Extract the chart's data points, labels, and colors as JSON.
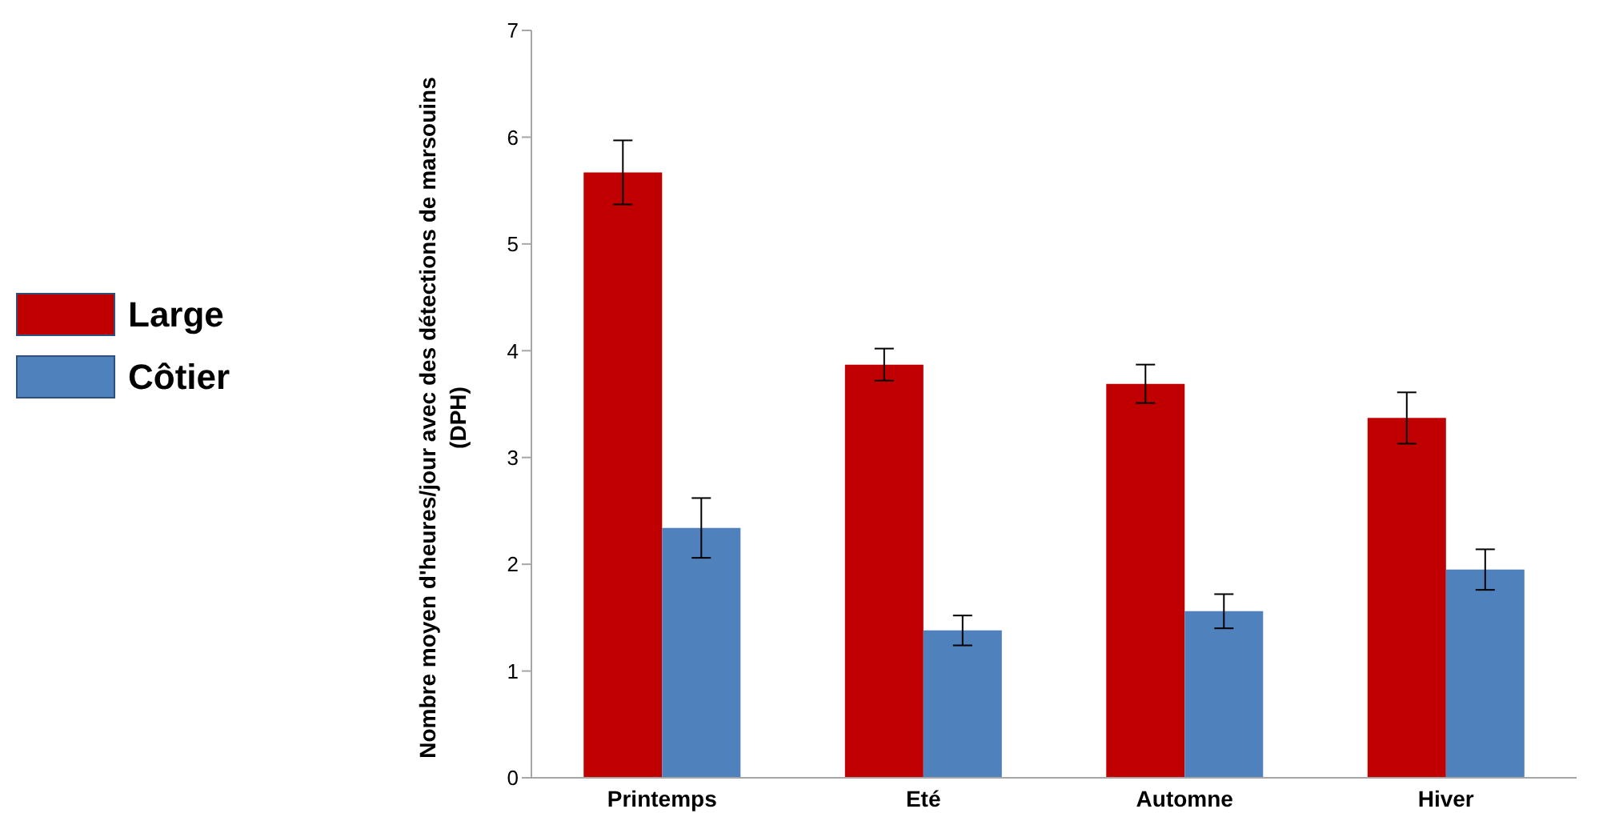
{
  "chart_data": {
    "type": "bar",
    "ylabel": "Nombre moyen d'heures/jour avec des détections de marsouins (DPH)",
    "categories": [
      "Printemps",
      "Eté",
      "Automne",
      "Hiver"
    ],
    "series": [
      {
        "name": "Large",
        "color": "#c00000",
        "values": [
          5.67,
          3.87,
          3.69,
          3.37
        ],
        "errors": [
          0.3,
          0.15,
          0.18,
          0.24
        ]
      },
      {
        "name": "Côtier",
        "color": "#4f81bd",
        "values": [
          2.34,
          1.38,
          1.56,
          1.95
        ],
        "errors": [
          0.28,
          0.14,
          0.16,
          0.19
        ]
      }
    ],
    "ylim": [
      0,
      7
    ],
    "yticks": [
      0,
      1,
      2,
      3,
      4,
      5,
      6,
      7
    ],
    "grid": false,
    "legend": "left"
  }
}
